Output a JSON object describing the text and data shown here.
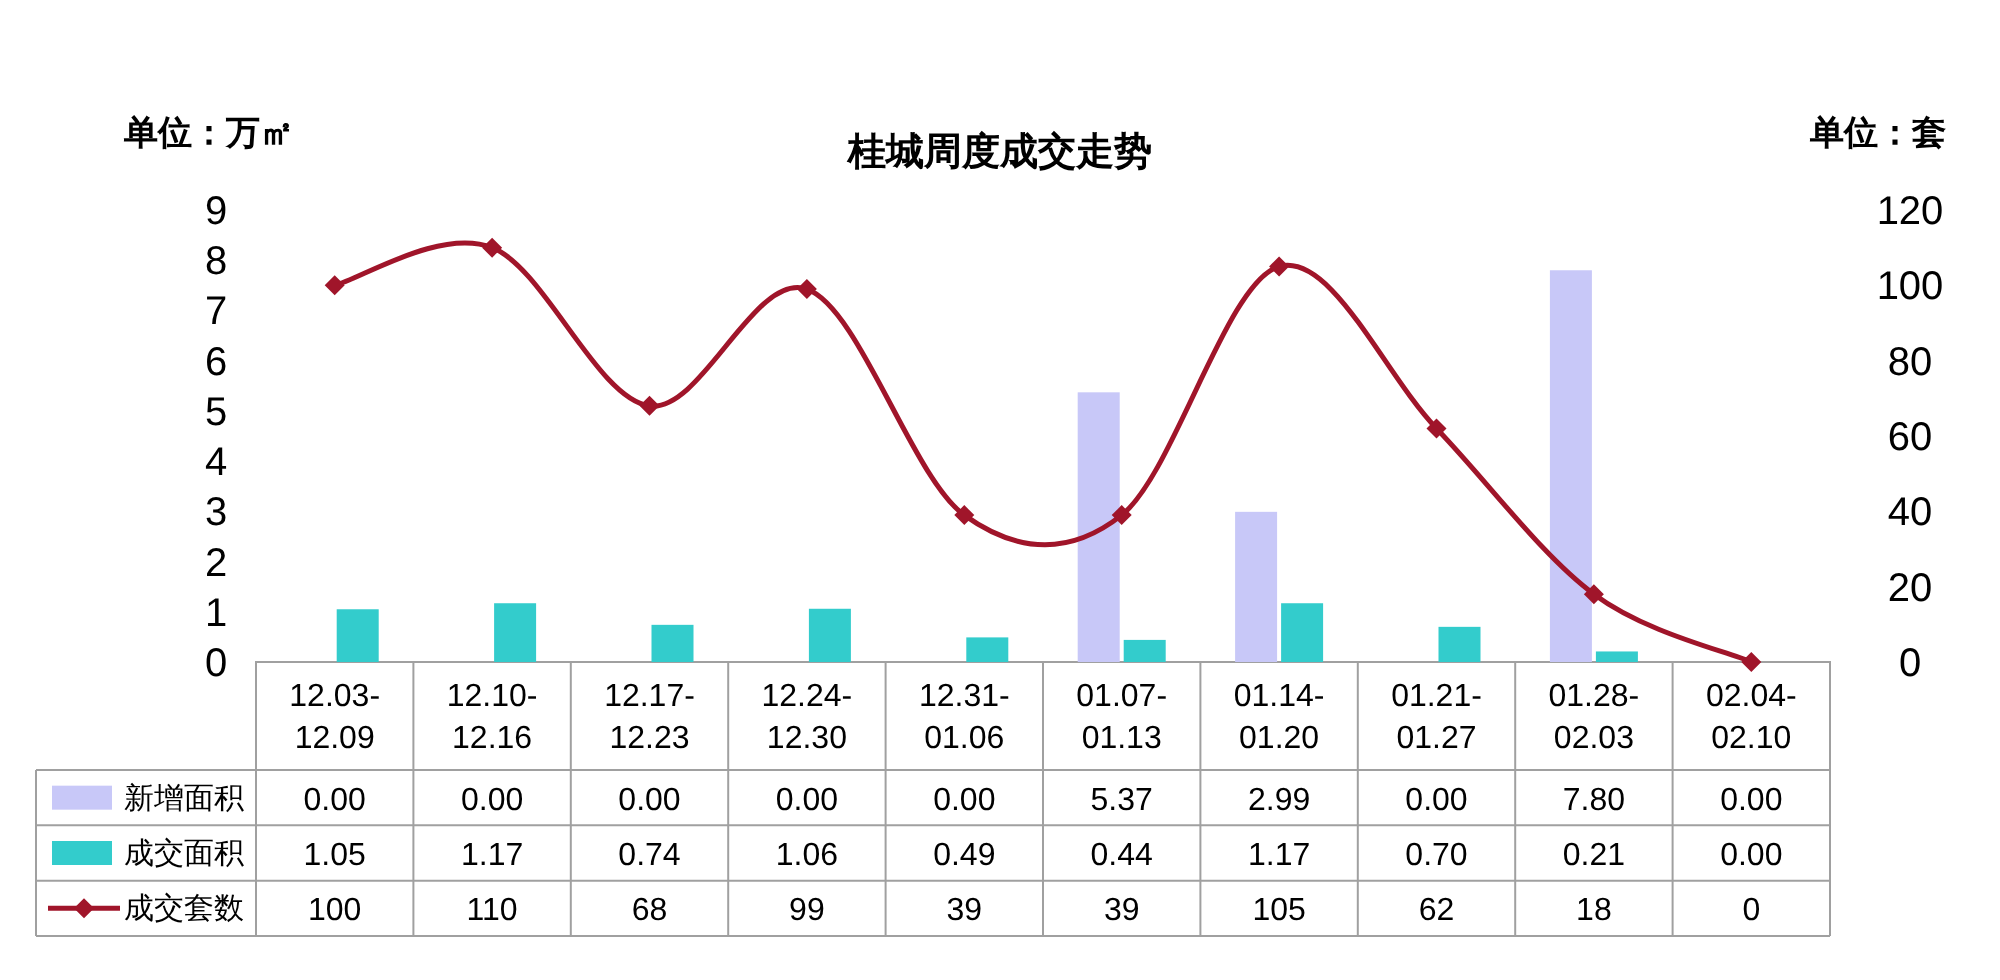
{
  "chart_data": {
    "type": "bar",
    "title": "桂城周度成交走势",
    "ylabel": "单位：万㎡",
    "y2label": "单位：套",
    "categories": [
      "12.03-12.09",
      "12.10-12.16",
      "12.17-12.23",
      "12.24-12.30",
      "12.31-01.06",
      "01.07-01.13",
      "01.14-01.20",
      "01.21-01.27",
      "01.28-02.03",
      "02.04-02.10"
    ],
    "series": [
      {
        "name": "新增面积",
        "color": "#c8c8f8",
        "values": [
          0,
          0,
          0,
          0,
          0,
          5.37,
          2.99,
          0,
          7.8,
          0
        ],
        "value_labels": [
          "0.00",
          "0.00",
          "0.00",
          "0.00",
          "0.00",
          "5.37",
          "2.99",
          "0.00",
          "7.80",
          "0.00"
        ]
      },
      {
        "name": "成交面积",
        "color": "#33cccc",
        "values": [
          1.05,
          1.17,
          0.74,
          1.06,
          0.49,
          0.44,
          1.17,
          0.7,
          0.21,
          0
        ],
        "value_labels": [
          "1.05",
          "1.17",
          "0.74",
          "1.06",
          "0.49",
          "0.44",
          "1.17",
          "0.70",
          "0.21",
          "0.00"
        ]
      },
      {
        "name": "成交套数",
        "type": "line",
        "axis": "y2",
        "color": "#a0152a",
        "marker": "diamond",
        "values": [
          100,
          110,
          68,
          99,
          39,
          39,
          105,
          62,
          18,
          0
        ],
        "value_labels": [
          "100",
          "110",
          "68",
          "99",
          "39",
          "39",
          "105",
          "62",
          "18",
          "0"
        ]
      }
    ],
    "ylim": [
      0,
      9
    ],
    "yticks": [
      0,
      1,
      2,
      3,
      4,
      5,
      6,
      7,
      8,
      9
    ],
    "y2lim": [
      0,
      120
    ],
    "y2ticks": [
      0,
      20,
      40,
      60,
      80,
      100,
      120
    ],
    "legend": "bottom"
  }
}
